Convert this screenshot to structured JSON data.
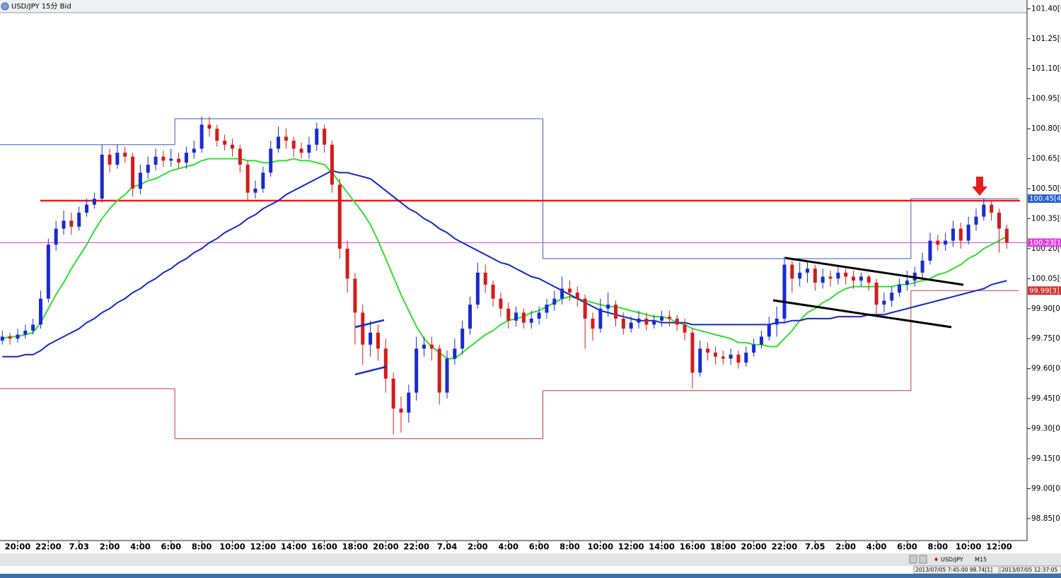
{
  "title": "USD/JPY 15分 Bid",
  "chart_data": {
    "type": "candlestick",
    "categories": [
      null,
      null,
      "20:00",
      null,
      null,
      null,
      "22:00",
      null,
      null,
      null,
      "7.03",
      null,
      null,
      null,
      "2:00",
      null,
      null,
      null,
      "4:00",
      null,
      null,
      null,
      "6:00",
      null,
      null,
      null,
      "8:00",
      null,
      null,
      null,
      "10:00",
      null,
      null,
      null,
      "12:00",
      null,
      null,
      null,
      "14:00",
      null,
      null,
      null,
      "16:00",
      null,
      null,
      null,
      "18:00",
      null,
      null,
      null,
      "20:00",
      null,
      null,
      null,
      "22:00",
      null,
      null,
      null,
      "7.04",
      null,
      null,
      null,
      "2:00",
      null,
      null,
      null,
      "4:00",
      null,
      null,
      null,
      "6:00",
      null,
      null,
      null,
      "8:00",
      null,
      null,
      null,
      "10:00",
      null,
      null,
      null,
      "12:00",
      null,
      null,
      null,
      "14:00",
      null,
      null,
      null,
      "16:00",
      null,
      null,
      null,
      "18:00",
      null,
      null,
      null,
      "20:00",
      null,
      null,
      null,
      "22:00",
      null,
      null,
      null,
      "7.05",
      null,
      null,
      null,
      "2:00",
      null,
      null,
      null,
      "4:00",
      null,
      null,
      null,
      "6:00",
      null,
      null,
      null,
      "8:00",
      null,
      null,
      null,
      "10:00",
      null,
      null,
      null,
      "12:00",
      null
    ],
    "open": [
      99.74,
      99.76,
      99.75,
      99.77,
      99.79,
      99.82,
      99.95,
      100.22,
      100.3,
      100.34,
      100.31,
      100.38,
      100.42,
      100.45,
      100.67,
      100.62,
      100.68,
      100.66,
      100.5,
      100.58,
      100.62,
      100.66,
      100.64,
      100.65,
      100.63,
      100.68,
      100.7,
      100.82,
      100.8,
      100.74,
      100.72,
      100.7,
      100.62,
      100.48,
      100.5,
      100.58,
      100.7,
      100.76,
      100.74,
      100.7,
      100.68,
      100.72,
      100.8,
      100.72,
      100.52,
      100.2,
      100.05,
      99.88,
      99.72,
      99.78,
      99.7,
      99.55,
      99.4,
      99.38,
      99.48,
      99.7,
      99.72,
      99.7,
      99.48,
      99.65,
      99.7,
      99.8,
      99.92,
      100.08,
      100.02,
      99.95,
      99.9,
      99.84,
      99.88,
      99.83,
      99.85,
      99.88,
      99.92,
      99.95,
      100.0,
      99.98,
      99.95,
      99.85,
      99.8,
      99.9,
      99.92,
      99.85,
      99.8,
      99.83,
      99.85,
      99.82,
      99.84,
      99.86,
      99.85,
      99.82,
      99.78,
      99.58,
      99.7,
      99.68,
      99.66,
      99.65,
      99.67,
      99.63,
      99.68,
      99.72,
      99.76,
      99.82,
      99.85,
      100.12,
      100.05,
      100.08,
      100.1,
      100.03,
      100.06,
      100.05,
      100.08,
      100.06,
      100.04,
      100.06,
      100.03,
      99.92,
      99.94,
      99.98,
      100.02,
      100.04,
      100.08,
      100.14,
      100.24,
      100.22,
      100.24,
      100.3,
      100.24,
      100.32,
      100.36,
      100.42,
      100.38,
      100.3
    ],
    "high": [
      99.79,
      99.78,
      99.8,
      99.82,
      99.85,
      99.99,
      100.25,
      100.34,
      100.39,
      100.38,
      100.41,
      100.45,
      100.48,
      100.72,
      100.7,
      100.72,
      100.71,
      100.68,
      100.62,
      100.66,
      100.7,
      100.69,
      100.7,
      100.68,
      100.71,
      100.74,
      100.86,
      100.86,
      100.82,
      100.77,
      100.75,
      100.72,
      100.64,
      100.54,
      100.61,
      100.74,
      100.81,
      100.8,
      100.76,
      100.73,
      100.76,
      100.83,
      100.82,
      100.74,
      100.55,
      100.24,
      100.08,
      99.92,
      99.84,
      99.82,
      99.75,
      99.58,
      99.46,
      99.52,
      99.76,
      99.76,
      99.76,
      99.72,
      99.69,
      99.75,
      99.84,
      99.96,
      100.13,
      100.12,
      100.04,
      99.98,
      99.93,
      99.91,
      99.9,
      99.89,
      99.91,
      99.95,
      99.99,
      100.06,
      100.04,
      100.01,
      99.97,
      99.88,
      99.95,
      99.98,
      99.94,
      99.88,
      99.86,
      99.89,
      99.88,
      99.87,
      99.89,
      99.89,
      99.87,
      99.85,
      99.8,
      99.74,
      99.73,
      99.71,
      99.69,
      99.7,
      99.69,
      99.71,
      99.75,
      99.79,
      99.86,
      99.91,
      100.16,
      100.14,
      100.13,
      100.14,
      100.12,
      100.1,
      100.09,
      100.11,
      100.1,
      100.09,
      100.08,
      100.07,
      100.05,
      99.98,
      100.01,
      100.05,
      100.09,
      100.11,
      100.18,
      100.28,
      100.27,
      100.28,
      100.34,
      100.33,
      100.36,
      100.4,
      100.45,
      100.44,
      100.4,
      100.32
    ],
    "low": [
      99.72,
      99.72,
      99.73,
      99.75,
      99.77,
      99.8,
      99.93,
      100.19,
      100.27,
      100.27,
      100.29,
      100.36,
      100.4,
      100.43,
      100.58,
      100.6,
      100.63,
      100.46,
      100.47,
      100.55,
      100.59,
      100.61,
      100.61,
      100.6,
      100.6,
      100.65,
      100.68,
      100.76,
      100.71,
      100.69,
      100.66,
      100.58,
      100.44,
      100.45,
      100.48,
      100.56,
      100.68,
      100.7,
      100.66,
      100.65,
      100.65,
      100.69,
      100.68,
      100.48,
      100.15,
      99.98,
      99.72,
      99.62,
      99.66,
      99.64,
      99.48,
      99.27,
      99.28,
      99.33,
      99.44,
      99.66,
      99.64,
      99.42,
      99.45,
      99.62,
      99.67,
      99.77,
      99.9,
      99.98,
      99.91,
      99.86,
      99.8,
      99.81,
      99.8,
      99.8,
      99.82,
      99.85,
      99.89,
      99.92,
      99.94,
      99.91,
      99.7,
      99.74,
      99.78,
      99.86,
      99.81,
      99.77,
      99.78,
      99.8,
      99.79,
      99.8,
      99.81,
      99.81,
      99.79,
      99.74,
      99.5,
      99.56,
      99.64,
      99.62,
      99.62,
      99.62,
      99.6,
      99.61,
      99.66,
      99.7,
      99.74,
      99.76,
      99.83,
      99.98,
      100.01,
      100.03,
      99.99,
      100.0,
      100.01,
      100.02,
      100.02,
      100.0,
      100.01,
      99.99,
      99.87,
      99.88,
      99.91,
      99.96,
      99.99,
      100.01,
      100.05,
      100.12,
      100.19,
      100.19,
      100.21,
      100.2,
      100.22,
      100.29,
      100.34,
      100.34,
      100.18,
      100.2
    ],
    "close": [
      99.76,
      99.75,
      99.77,
      99.79,
      99.82,
      99.95,
      100.22,
      100.3,
      100.34,
      100.31,
      100.38,
      100.42,
      100.45,
      100.67,
      100.62,
      100.68,
      100.66,
      100.5,
      100.58,
      100.62,
      100.66,
      100.64,
      100.65,
      100.63,
      100.68,
      100.7,
      100.82,
      100.8,
      100.74,
      100.72,
      100.7,
      100.62,
      100.48,
      100.5,
      100.58,
      100.7,
      100.76,
      100.74,
      100.7,
      100.68,
      100.72,
      100.8,
      100.72,
      100.52,
      100.2,
      100.05,
      99.88,
      99.72,
      99.78,
      99.7,
      99.55,
      99.4,
      99.38,
      99.48,
      99.7,
      99.72,
      99.7,
      99.48,
      99.65,
      99.7,
      99.8,
      99.92,
      100.08,
      100.02,
      99.95,
      99.9,
      99.84,
      99.88,
      99.83,
      99.85,
      99.88,
      99.92,
      99.95,
      100.0,
      99.98,
      99.95,
      99.85,
      99.8,
      99.9,
      99.92,
      99.85,
      99.8,
      99.83,
      99.85,
      99.82,
      99.84,
      99.86,
      99.85,
      99.82,
      99.78,
      99.58,
      99.7,
      99.68,
      99.66,
      99.65,
      99.67,
      99.63,
      99.68,
      99.72,
      99.76,
      99.82,
      99.85,
      100.12,
      100.05,
      100.08,
      100.1,
      100.03,
      100.06,
      100.05,
      100.08,
      100.06,
      100.04,
      100.06,
      100.03,
      99.92,
      99.94,
      99.98,
      100.02,
      100.04,
      100.08,
      100.14,
      100.24,
      100.22,
      100.24,
      100.3,
      100.24,
      100.32,
      100.36,
      100.42,
      100.38,
      100.3,
      100.23
    ],
    "up_color": "#1a2bd0",
    "down_color": "#d41c1c",
    "moving_averages": [
      {
        "color": "#2fe02f",
        "values": [
          99.75,
          99.76,
          99.76,
          99.77,
          99.78,
          99.83,
          99.9,
          99.97,
          100.03,
          100.1,
          100.16,
          100.22,
          100.29,
          100.35,
          100.4,
          100.44,
          100.47,
          100.51,
          100.52,
          100.54,
          100.55,
          100.57,
          100.59,
          100.6,
          100.61,
          100.62,
          100.64,
          100.65,
          100.65,
          100.65,
          100.65,
          100.65,
          100.64,
          100.64,
          100.63,
          100.63,
          100.64,
          100.64,
          100.65,
          100.64,
          100.64,
          100.63,
          100.62,
          100.58,
          100.53,
          100.48,
          100.43,
          100.38,
          100.32,
          100.24,
          100.15,
          100.06,
          99.97,
          99.89,
          99.81,
          99.75,
          99.71,
          99.68,
          99.65,
          99.65,
          99.68,
          99.71,
          99.74,
          99.77,
          99.79,
          99.82,
          99.84,
          99.85,
          99.86,
          99.88,
          99.89,
          99.91,
          99.93,
          99.95,
          99.96,
          99.95,
          99.94,
          99.93,
          99.92,
          99.91,
          99.91,
          99.9,
          99.89,
          99.88,
          99.87,
          99.86,
          99.86,
          99.85,
          99.83,
          99.82,
          99.8,
          99.79,
          99.78,
          99.77,
          99.76,
          99.75,
          99.73,
          99.73,
          99.72,
          99.72,
          99.71,
          99.71,
          99.75,
          99.79,
          99.84,
          99.88,
          99.9,
          99.93,
          99.95,
          99.98,
          100.0,
          100.01,
          100.01,
          100.01,
          100.01,
          100.01,
          100.01,
          100.02,
          100.02,
          100.03,
          100.04,
          100.05,
          100.07,
          100.08,
          100.1,
          100.12,
          100.15,
          100.17,
          100.2,
          100.22,
          100.24,
          100.26
        ]
      },
      {
        "color": "#1428c8",
        "values": [
          99.66,
          99.66,
          99.66,
          99.67,
          99.67,
          99.69,
          99.72,
          99.74,
          99.76,
          99.78,
          99.8,
          99.83,
          99.85,
          99.88,
          99.9,
          99.93,
          99.95,
          99.98,
          100.0,
          100.03,
          100.05,
          100.08,
          100.1,
          100.13,
          100.15,
          100.18,
          100.2,
          100.23,
          100.25,
          100.28,
          100.3,
          100.32,
          100.35,
          100.37,
          100.4,
          100.42,
          100.44,
          100.47,
          100.49,
          100.51,
          100.53,
          100.55,
          100.57,
          100.59,
          100.58,
          100.58,
          100.57,
          100.56,
          100.55,
          100.52,
          100.49,
          100.46,
          100.43,
          100.4,
          100.38,
          100.35,
          100.33,
          100.3,
          100.28,
          100.25,
          100.23,
          100.21,
          100.19,
          100.17,
          100.15,
          100.13,
          100.12,
          100.1,
          100.08,
          100.06,
          100.05,
          100.03,
          100.01,
          99.99,
          99.97,
          99.95,
          99.93,
          99.91,
          99.89,
          99.88,
          99.87,
          99.86,
          99.85,
          99.84,
          99.84,
          99.84,
          99.83,
          99.83,
          99.83,
          99.83,
          99.82,
          99.82,
          99.82,
          99.82,
          99.82,
          99.82,
          99.82,
          99.82,
          99.82,
          99.82,
          99.82,
          99.83,
          99.83,
          99.84,
          99.84,
          99.85,
          99.85,
          99.85,
          99.85,
          99.86,
          99.86,
          99.86,
          99.86,
          99.87,
          99.87,
          99.87,
          99.88,
          99.89,
          99.9,
          99.91,
          99.92,
          99.93,
          99.94,
          99.95,
          99.96,
          99.97,
          99.98,
          99.99,
          100.0,
          100.02,
          100.03,
          100.04
        ]
      }
    ],
    "ylim": [
      98.74,
      101.38
    ],
    "yticks": [
      {
        "value": 101.4,
        "label": "101.40[0]"
      },
      {
        "value": 101.25,
        "label": "101.25[0]"
      },
      {
        "value": 101.1,
        "label": "101.10[0]"
      },
      {
        "value": 100.95,
        "label": "100.95[0]"
      },
      {
        "value": 100.8,
        "label": "100.80[0]"
      },
      {
        "value": 100.65,
        "label": "100.65[0]"
      },
      {
        "value": 100.5,
        "label": "100.50[0]"
      },
      {
        "value": 100.35,
        "label": "100.35[0]"
      },
      {
        "value": 100.2,
        "label": "100.20[0]"
      },
      {
        "value": 100.05,
        "label": "100.05[0]"
      },
      {
        "value": 99.9,
        "label": "99.90[0]"
      },
      {
        "value": 99.75,
        "label": "99.75[0]"
      },
      {
        "value": 99.6,
        "label": "99.60[0]"
      },
      {
        "value": 99.45,
        "label": "99.45[0]"
      },
      {
        "value": 99.3,
        "label": "99.30[0]"
      },
      {
        "value": 99.15,
        "label": "99.15[0]"
      },
      {
        "value": 99.0,
        "label": "99.00[0]"
      },
      {
        "value": 98.85,
        "label": "98.85[0]"
      }
    ],
    "hlines": [
      {
        "value": 100.44,
        "color": "#e81c1c"
      },
      {
        "value": 100.23,
        "color": "#e040e0"
      }
    ],
    "price_labels": [
      {
        "value": 100.45,
        "label": "100.45[4",
        "color": "#2a62d0"
      },
      {
        "value": 100.23,
        "label": "100.23[1",
        "color": "#e040e0"
      },
      {
        "value": 99.99,
        "label": "99.99[3]",
        "color": "#d83030"
      }
    ],
    "day_ranges": [
      {
        "high": 100.72,
        "low": 99.5
      },
      {
        "high": 100.85,
        "low": 99.25
      },
      {
        "high": 100.15,
        "low": 99.49
      },
      {
        "high": 100.45,
        "low": 99.99
      }
    ],
    "range_high_color": "#3a58c8",
    "range_low_color": "#c83a3a"
  },
  "status_bar": {
    "symbol": "USD/JPY",
    "timeframe": "M15",
    "cursor": "2013/07/05 7:45:00 98.74[1]",
    "clock": "2013/07/05 12:37:05"
  }
}
